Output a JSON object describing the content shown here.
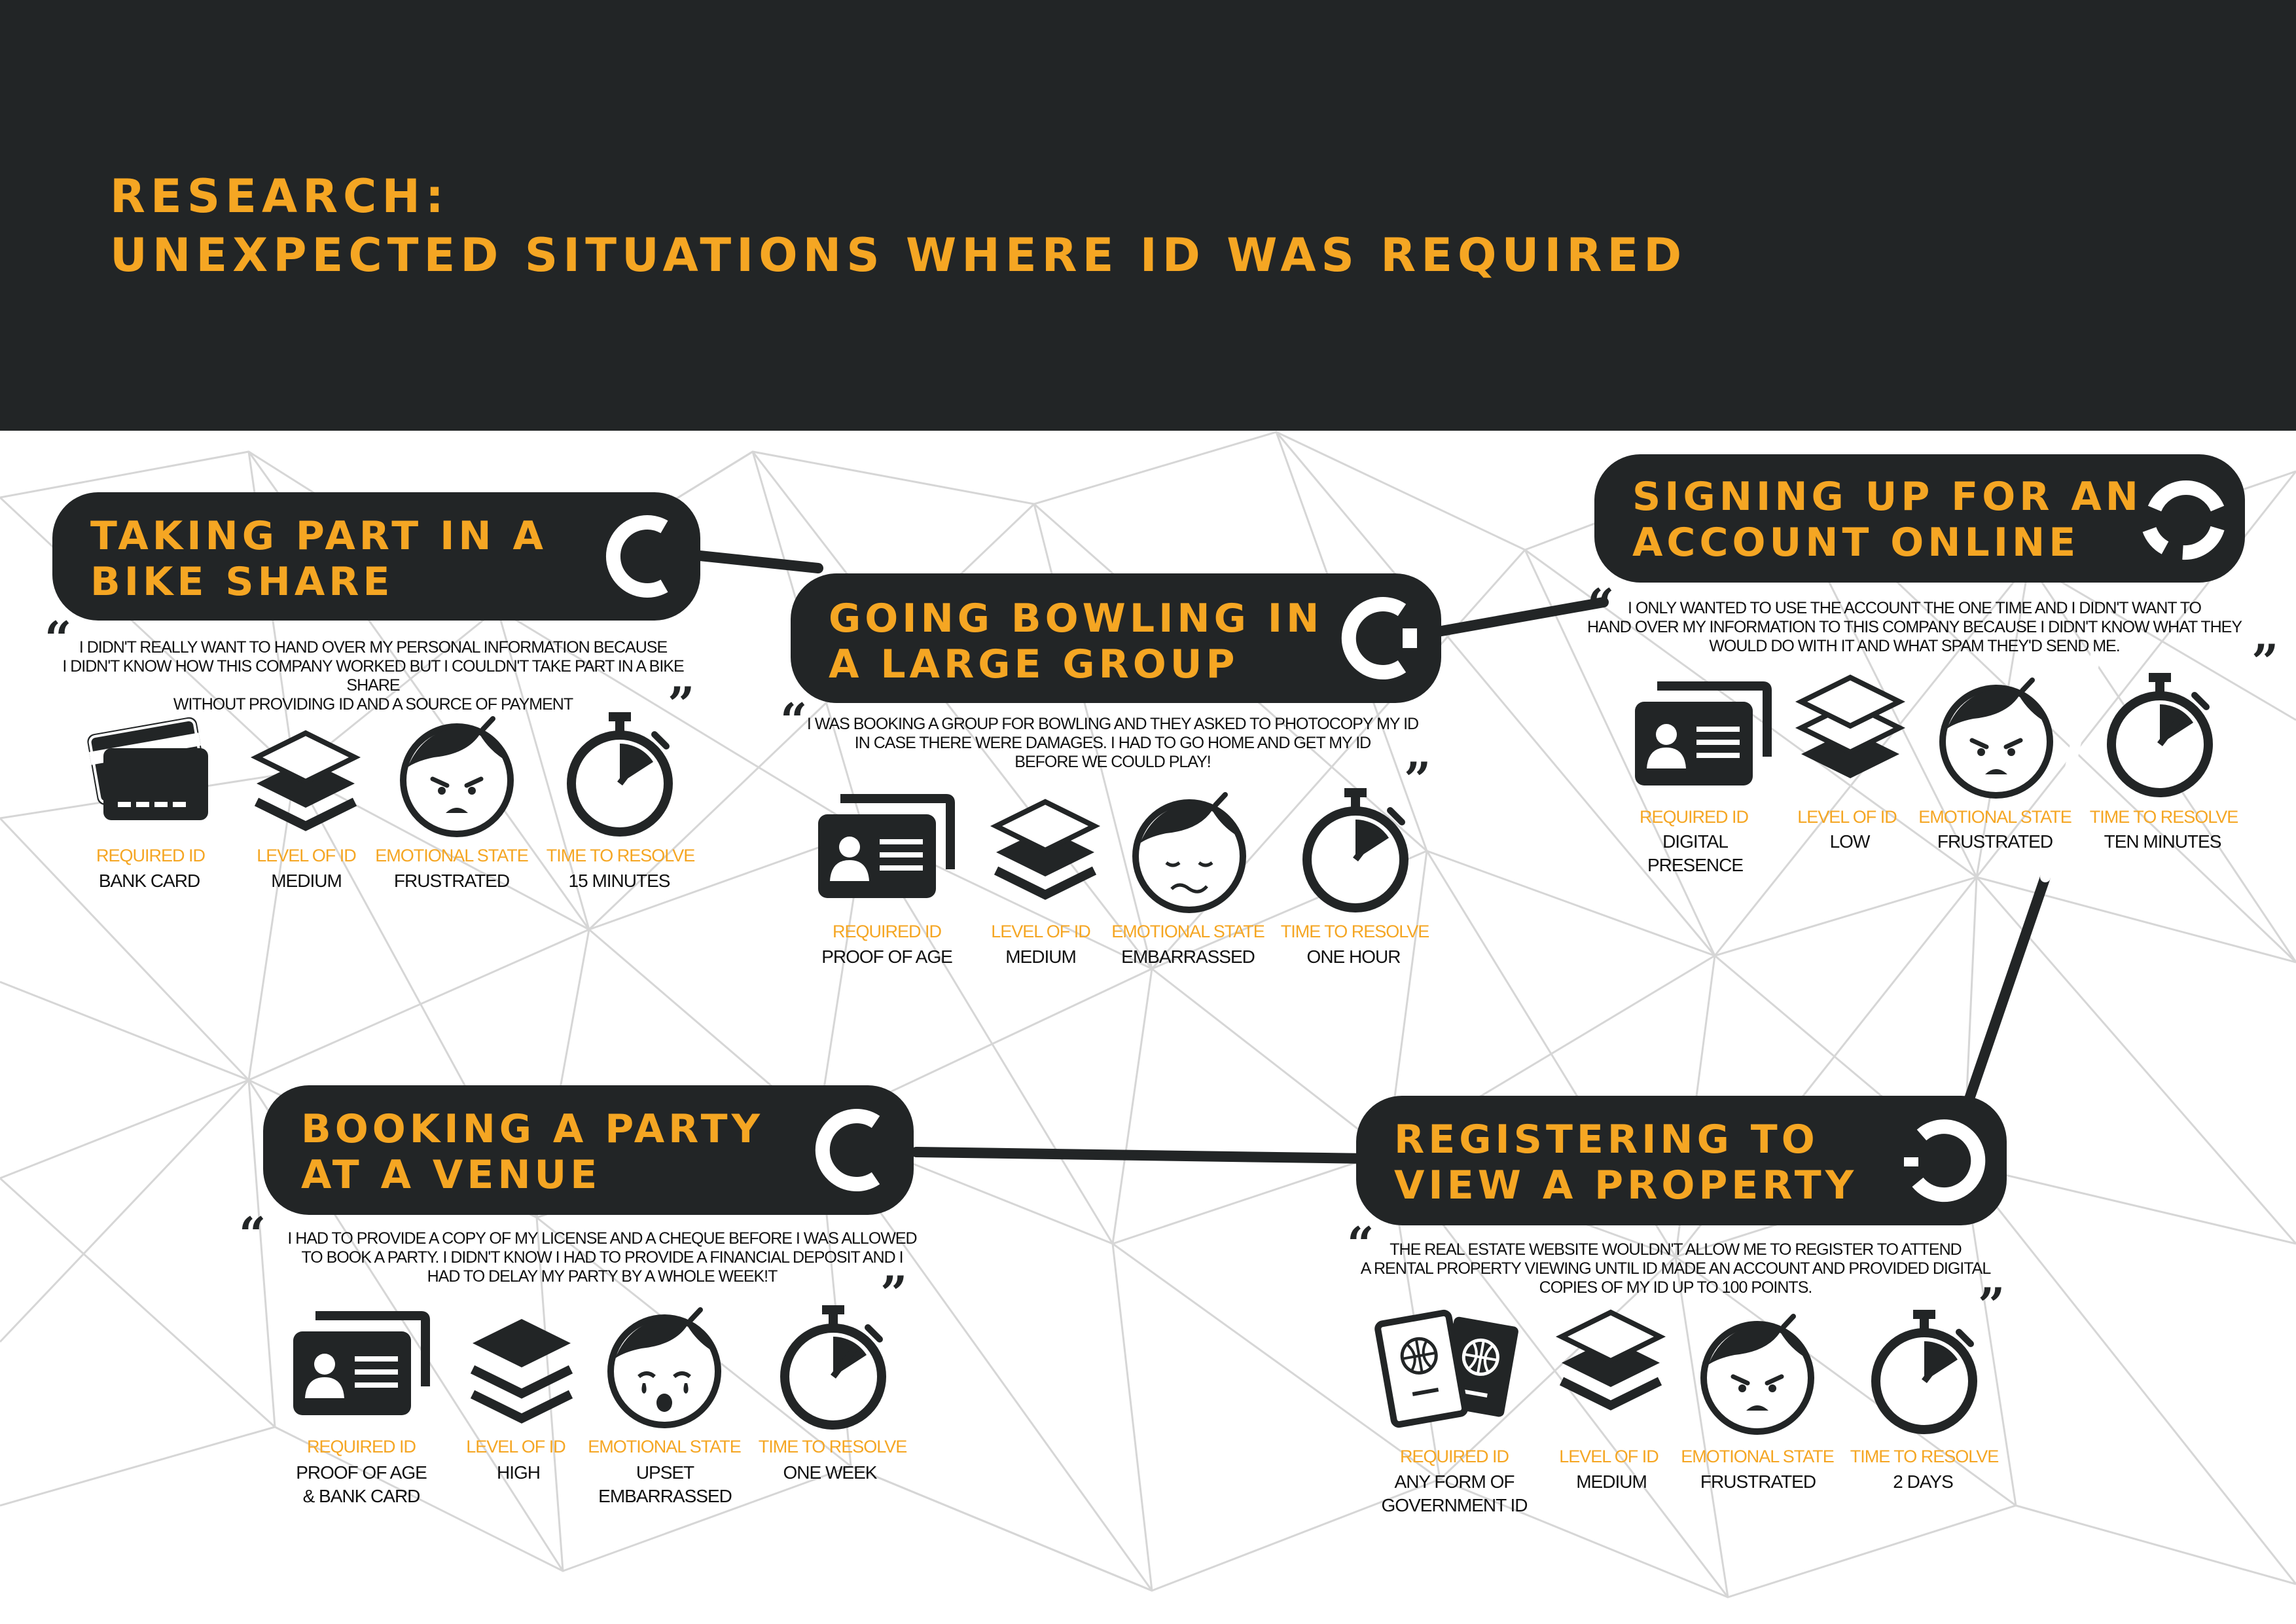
{
  "page": {
    "title_line1": "RESEARCH:",
    "title_line2": "UNEXPECTED SITUATIONS WHERE ID WAS REQUIRED"
  },
  "colors": {
    "accent": "#F5A623",
    "dark": "#222526",
    "text": "#111111",
    "background": "#ffffff"
  },
  "labels": {
    "required_id": "REQUIRED ID",
    "level_of_id": "LEVEL OF ID",
    "emotional_state": "EMOTIONAL STATE",
    "time_to_resolve": "TIME TO RESOLVE"
  },
  "situations": [
    {
      "title_line1": "TAKING PART IN A",
      "title_line2": "BIKE SHARE",
      "quote_line1": "I DIDN'T REALLY WANT TO HAND OVER MY PERSONAL INFORMATION BECAUSE",
      "quote_line2": "I DIDN'T KNOW HOW THIS COMPANY WORKED BUT I COULDN'T TAKE PART IN A BIKE SHARE",
      "quote_line3": "WITHOUT PROVIDING ID AND A SOURCE OF PAYMENT",
      "required_id": "BANK CARD",
      "level_of_id": "MEDIUM",
      "emotional_state": "FRUSTRATED",
      "time_to_resolve": "15 MINUTES",
      "id_icon": "bank-card-icon",
      "level_icon": "layers-medium-icon",
      "face_icon": "frustrated-face-icon"
    },
    {
      "title_line1": "GOING BOWLING IN",
      "title_line2": "A LARGE GROUP",
      "quote_line1": "I WAS BOOKING A GROUP FOR BOWLING AND THEY ASKED TO PHOTOCOPY MY ID",
      "quote_line2": "IN CASE THERE WERE DAMAGES. I HAD TO GO HOME AND GET MY ID",
      "quote_line3": "BEFORE WE COULD PLAY!",
      "required_id": "PROOF OF AGE",
      "level_of_id": "MEDIUM",
      "emotional_state": "EMBARRASSED",
      "time_to_resolve": "ONE HOUR",
      "id_icon": "id-card-icon",
      "level_icon": "layers-medium-icon",
      "face_icon": "embarrassed-face-icon"
    },
    {
      "title_line1": "SIGNING UP FOR AN",
      "title_line2": "ACCOUNT ONLINE",
      "quote_line1": "I ONLY WANTED TO USE THE ACCOUNT THE ONE TIME AND I DIDN'T WANT TO",
      "quote_line2": "HAND OVER MY  INFORMATION TO THIS COMPANY BECAUSE I DIDN'T KNOW WHAT THEY",
      "quote_line3": "WOULD DO WITH IT AND WHAT SPAM THEY'D SEND ME.",
      "required_id_line1": "DIGITAL",
      "required_id_line2": "PRESENCE",
      "level_of_id": "LOW",
      "emotional_state": "FRUSTRATED",
      "time_to_resolve": "TEN MINUTES",
      "id_icon": "id-card-icon",
      "level_icon": "layers-low-icon",
      "face_icon": "frustrated-face-icon"
    },
    {
      "title_line1": "BOOKING A PARTY",
      "title_line2": "AT A VENUE",
      "quote_line1": "I HAD TO PROVIDE A COPY OF MY LICENSE AND A CHEQUE BEFORE I WAS ALLOWED",
      "quote_line2": "TO BOOK A PARTY. I DIDN'T KNOW I HAD TO PROVIDE A FINANCIAL DEPOSIT AND I",
      "quote_line3": "HAD TO DELAY MY PARTY BY A WHOLE WEEK!T",
      "required_id_line1": "PROOF OF AGE",
      "required_id_line2": "& BANK CARD",
      "level_of_id": "HIGH",
      "emotional_state_line1": "UPSET",
      "emotional_state_line2": "EMBARRASSED",
      "time_to_resolve": "ONE WEEK",
      "id_icon": "id-card-icon",
      "level_icon": "layers-high-icon",
      "face_icon": "upset-face-icon"
    },
    {
      "title_line1": "REGISTERING TO",
      "title_line2": "VIEW A PROPERTY",
      "quote_line1": "THE REAL ESTATE WEBSITE WOULDN'T ALLOW ME TO REGISTER TO ATTEND",
      "quote_line2": "A RENTAL PROPERTY VIEWING UNTIL ID MADE AN ACCOUNT AND PROVIDED DIGITAL",
      "quote_line3": "COPIES OF MY ID UP TO 100 POINTS.",
      "required_id_line1": "ANY FORM OF",
      "required_id_line2": "GOVERNMENT ID",
      "level_of_id": "MEDIUM",
      "emotional_state": "FRUSTRATED",
      "time_to_resolve": "2 DAYS",
      "id_icon": "passport-icon",
      "level_icon": "layers-medium-icon",
      "face_icon": "frustrated-face-icon"
    }
  ]
}
